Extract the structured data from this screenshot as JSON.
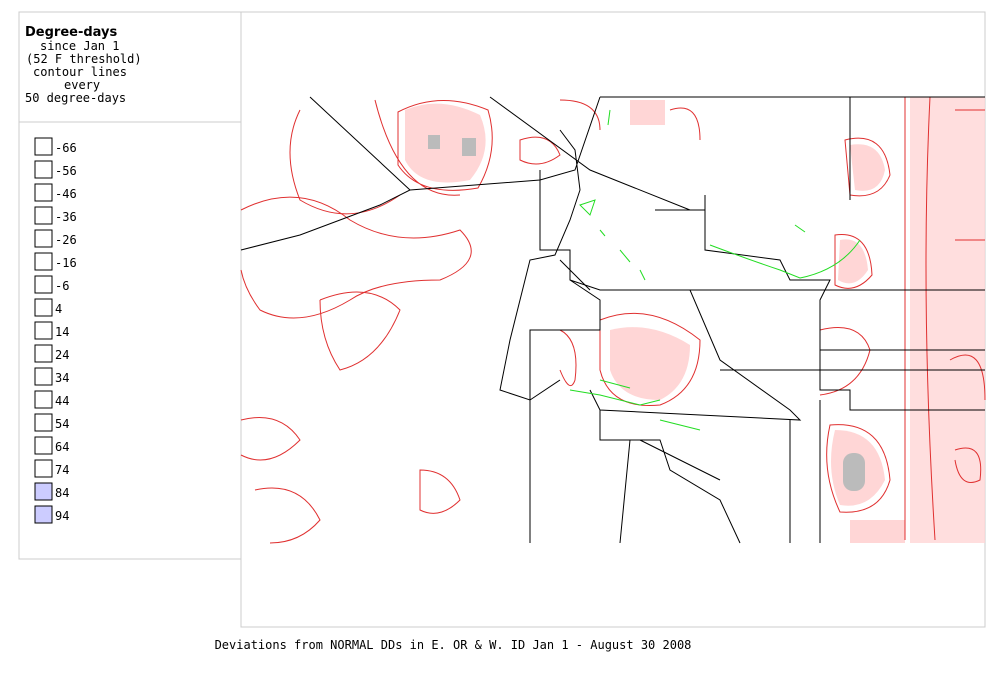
{
  "legend": {
    "title": "Degree-days",
    "subtitle_lines": [
      "since Jan 1",
      "(52 F threshold)",
      "contour lines",
      "every",
      "50 degree-days"
    ],
    "items": [
      {
        "label": "-66",
        "color": "#ffffff"
      },
      {
        "label": "-56",
        "color": "#ffffff"
      },
      {
        "label": "-46",
        "color": "#ffffff"
      },
      {
        "label": "-36",
        "color": "#ffffff"
      },
      {
        "label": "-26",
        "color": "#ffffff"
      },
      {
        "label": "-16",
        "color": "#ffffff"
      },
      {
        "label": "-6",
        "color": "#ffffff"
      },
      {
        "label": "4",
        "color": "#ffffff"
      },
      {
        "label": "14",
        "color": "#ffffff"
      },
      {
        "label": "24",
        "color": "#ffffff"
      },
      {
        "label": "34",
        "color": "#ffffff"
      },
      {
        "label": "44",
        "color": "#ffffff"
      },
      {
        "label": "54",
        "color": "#ffffff"
      },
      {
        "label": "64",
        "color": "#ffffff"
      },
      {
        "label": "74",
        "color": "#ffffff"
      },
      {
        "label": "84",
        "color": "#ccccff"
      },
      {
        "label": "94",
        "color": "#ccccff"
      }
    ]
  },
  "caption": "Deviations from NORMAL DDs in E. OR & W. ID Jan 1 - August 30 2008"
}
